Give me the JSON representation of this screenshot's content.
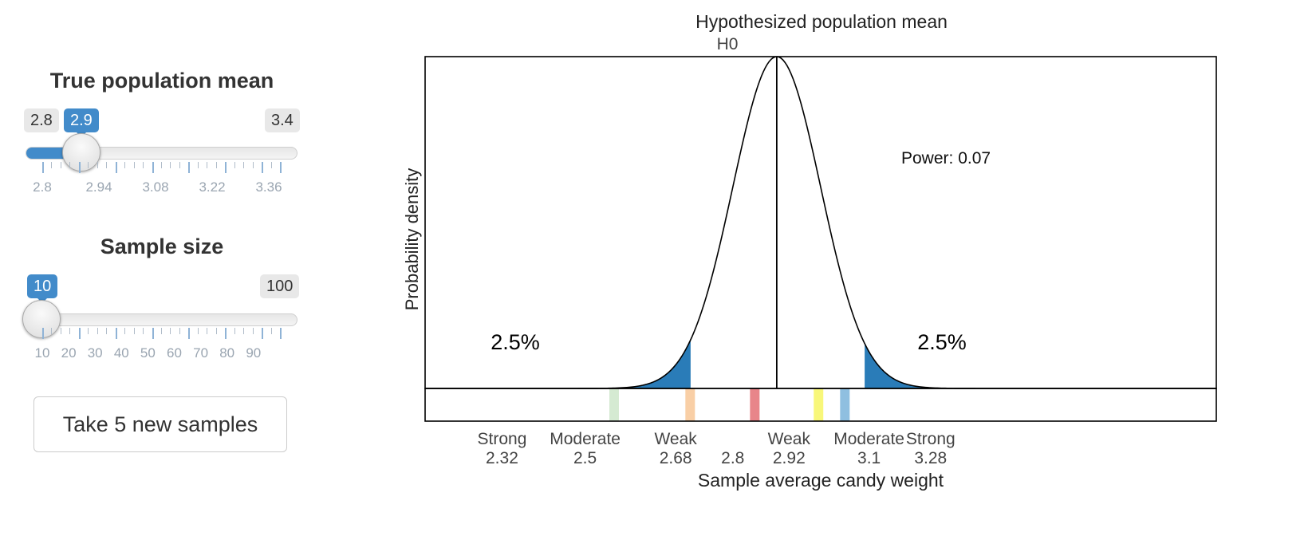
{
  "slider_mean": {
    "title": "True population mean",
    "min_label": "2.8",
    "max_label": "3.4",
    "value_label": "2.9",
    "value": 2.9,
    "min": 2.8,
    "max": 3.4,
    "tick_labels": [
      "2.8",
      "2.94",
      "3.08",
      "3.22",
      "3.36"
    ]
  },
  "slider_size": {
    "title": "Sample size",
    "min_label": "10",
    "max_label": "100",
    "value_label": "10",
    "value": 10,
    "min": 10,
    "max": 100,
    "tick_labels": [
      "10",
      "20",
      "30",
      "40",
      "50",
      "60",
      "70",
      "80",
      "90"
    ]
  },
  "button": {
    "label": "Take 5 new samples"
  },
  "accent_color": "#428bca",
  "chart_data": {
    "type": "area",
    "title": "Hypothesized population mean",
    "h0_label": "H0",
    "xlabel": "Sample average candy weight",
    "ylabel": "Probability density",
    "power_text": "Power: 0.07",
    "h0_value": 2.8,
    "xlim": [
      2.0,
      3.8
    ],
    "distribution": {
      "kind": "normal",
      "mean": 2.8,
      "sd": 0.1
    },
    "critical_lower": 2.604,
    "critical_upper": 3.0,
    "tail_labels": [
      "2.5%",
      "2.5%"
    ],
    "tail_color": "#2a7cb8",
    "tick_labels": [
      {
        "category": "Strong",
        "value": "2.32",
        "x": 2.175
      },
      {
        "category": "Moderate",
        "value": "2.5",
        "x": 2.364
      },
      {
        "category": "Weak",
        "value": "2.68",
        "x": 2.57
      },
      {
        "category": "",
        "value": "2.8",
        "x": 2.7
      },
      {
        "category": "Weak",
        "value": "2.92",
        "x": 2.828
      },
      {
        "category": "Moderate",
        "value": "3.1",
        "x": 3.01
      },
      {
        "category": "Strong",
        "value": "3.28",
        "x": 3.15
      }
    ],
    "sample_marks": [
      {
        "x": 2.43,
        "color": "#d5ead2"
      },
      {
        "x": 2.603,
        "color": "#f9cfa6"
      },
      {
        "x": 2.75,
        "color": "#e8858a"
      },
      {
        "x": 2.895,
        "color": "#f8f77a"
      },
      {
        "x": 2.955,
        "color": "#8fbfe0"
      }
    ]
  }
}
